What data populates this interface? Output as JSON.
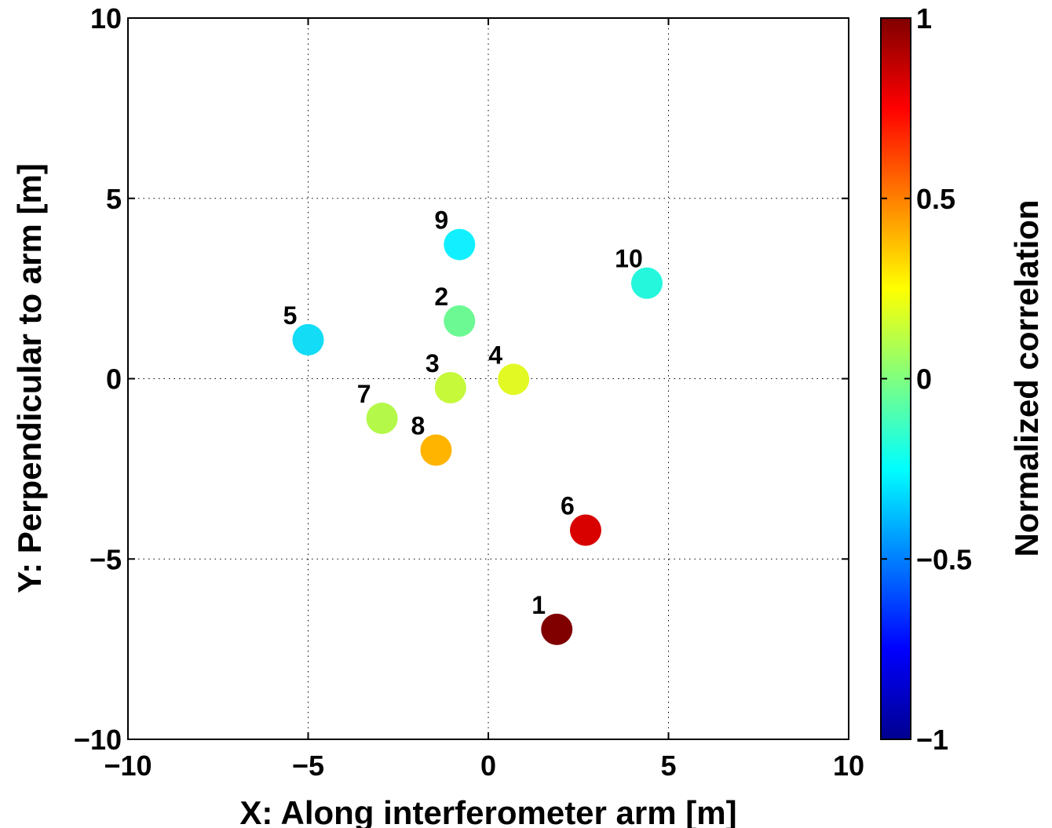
{
  "chart_data": {
    "type": "scatter",
    "title": "",
    "xlabel": "X: Along interferometer arm [m]",
    "ylabel": "Y: Perpendicular to arm [m]",
    "xlim": [
      -10,
      10
    ],
    "ylim": [
      -10,
      10
    ],
    "xticks": [
      -10,
      -5,
      0,
      5,
      10
    ],
    "yticks": [
      -10,
      -5,
      0,
      5,
      10
    ],
    "xtick_labels": [
      "−10",
      "−5",
      "0",
      "5",
      "10"
    ],
    "ytick_labels": [
      "−10",
      "−5",
      "0",
      "5",
      "10"
    ],
    "grid": true,
    "colormap": "jet",
    "points": [
      {
        "label": "1",
        "x": 1.9,
        "y": -6.95,
        "value": 1.0,
        "color": "#800000"
      },
      {
        "label": "2",
        "x": -0.8,
        "y": 1.6,
        "value": -0.05,
        "color": "#6cf993"
      },
      {
        "label": "3",
        "x": -1.05,
        "y": -0.25,
        "value": 0.1,
        "color": "#c5f93a"
      },
      {
        "label": "4",
        "x": 0.7,
        "y": -0.02,
        "value": 0.18,
        "color": "#e2f924"
      },
      {
        "label": "5",
        "x": -5.0,
        "y": 1.08,
        "value": -0.32,
        "color": "#12dcf6"
      },
      {
        "label": "6",
        "x": 2.7,
        "y": -4.2,
        "value": 0.82,
        "color": "#d90000"
      },
      {
        "label": "7",
        "x": -2.95,
        "y": -1.1,
        "value": 0.08,
        "color": "#b4f94a"
      },
      {
        "label": "8",
        "x": -1.45,
        "y": -1.98,
        "value": 0.4,
        "color": "#ffb400"
      },
      {
        "label": "9",
        "x": -0.8,
        "y": 3.72,
        "value": -0.27,
        "color": "#12f0ff"
      },
      {
        "label": "10",
        "x": 4.4,
        "y": 2.65,
        "value": -0.2,
        "color": "#24f7dc"
      }
    ],
    "colorbar": {
      "label": "Normalized correlation",
      "min": -1,
      "max": 1,
      "ticks": [
        1,
        0.5,
        0,
        -0.5,
        -1
      ],
      "tick_labels": [
        "1",
        "0.5",
        "0",
        "−0.5",
        "−1"
      ]
    }
  }
}
